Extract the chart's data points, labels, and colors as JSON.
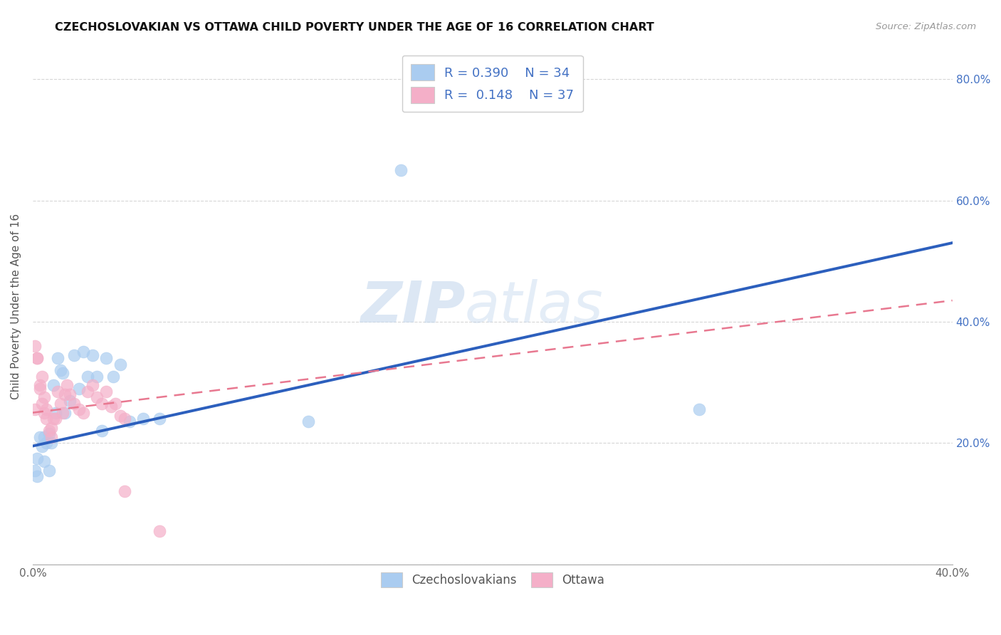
{
  "title": "CZECHOSLOVAKIAN VS OTTAWA CHILD POVERTY UNDER THE AGE OF 16 CORRELATION CHART",
  "source": "Source: ZipAtlas.com",
  "ylabel": "Child Poverty Under the Age of 16",
  "xlim": [
    0.0,
    0.4
  ],
  "ylim": [
    0.0,
    0.85
  ],
  "xtick_positions": [
    0.0,
    0.05,
    0.1,
    0.15,
    0.2,
    0.25,
    0.3,
    0.35,
    0.4
  ],
  "xtick_labels": [
    "0.0%",
    "",
    "",
    "",
    "",
    "",
    "",
    "",
    "40.0%"
  ],
  "ytick_positions": [
    0.0,
    0.2,
    0.4,
    0.6,
    0.8
  ],
  "ytick_labels_right": [
    "",
    "20.0%",
    "40.0%",
    "60.0%",
    "80.0%"
  ],
  "legend_label1": "Czechoslovakians",
  "legend_label2": "Ottawa",
  "color_czech": "#aaccf0",
  "color_ottawa": "#f4afc8",
  "color_line_czech": "#2c5fbd",
  "color_line_ottawa": "#e87890",
  "watermark_zip": "ZIP",
  "watermark_atlas": "atlas",
  "czech_R": 0.39,
  "czech_N": 34,
  "ottawa_R": 0.148,
  "ottawa_N": 37,
  "czech_x": [
    0.001,
    0.002,
    0.002,
    0.003,
    0.004,
    0.005,
    0.005,
    0.006,
    0.007,
    0.007,
    0.008,
    0.009,
    0.01,
    0.011,
    0.012,
    0.013,
    0.014,
    0.016,
    0.018,
    0.02,
    0.022,
    0.024,
    0.026,
    0.028,
    0.03,
    0.032,
    0.035,
    0.038,
    0.042,
    0.048,
    0.055,
    0.12,
    0.29,
    0.16
  ],
  "czech_y": [
    0.155,
    0.175,
    0.145,
    0.21,
    0.195,
    0.21,
    0.17,
    0.2,
    0.215,
    0.155,
    0.2,
    0.295,
    0.25,
    0.34,
    0.32,
    0.315,
    0.25,
    0.27,
    0.345,
    0.29,
    0.35,
    0.31,
    0.345,
    0.31,
    0.22,
    0.34,
    0.31,
    0.33,
    0.235,
    0.24,
    0.24,
    0.235,
    0.255,
    0.65
  ],
  "ottawa_x": [
    0.001,
    0.001,
    0.002,
    0.002,
    0.003,
    0.003,
    0.004,
    0.004,
    0.005,
    0.005,
    0.006,
    0.006,
    0.007,
    0.008,
    0.008,
    0.009,
    0.01,
    0.011,
    0.012,
    0.013,
    0.014,
    0.015,
    0.016,
    0.018,
    0.02,
    0.022,
    0.024,
    0.026,
    0.028,
    0.03,
    0.032,
    0.034,
    0.036,
    0.038,
    0.04,
    0.055,
    0.04
  ],
  "ottawa_y": [
    0.255,
    0.36,
    0.34,
    0.34,
    0.295,
    0.29,
    0.31,
    0.265,
    0.275,
    0.25,
    0.255,
    0.24,
    0.22,
    0.21,
    0.225,
    0.24,
    0.24,
    0.285,
    0.265,
    0.25,
    0.28,
    0.295,
    0.28,
    0.265,
    0.255,
    0.25,
    0.285,
    0.295,
    0.275,
    0.265,
    0.285,
    0.26,
    0.265,
    0.245,
    0.24,
    0.055,
    0.12
  ],
  "czech_line_x0": 0.0,
  "czech_line_y0": 0.195,
  "czech_line_x1": 0.4,
  "czech_line_y1": 0.53,
  "ottawa_line_x0": 0.0,
  "ottawa_line_y0": 0.25,
  "ottawa_line_x1": 0.4,
  "ottawa_line_y1": 0.435
}
